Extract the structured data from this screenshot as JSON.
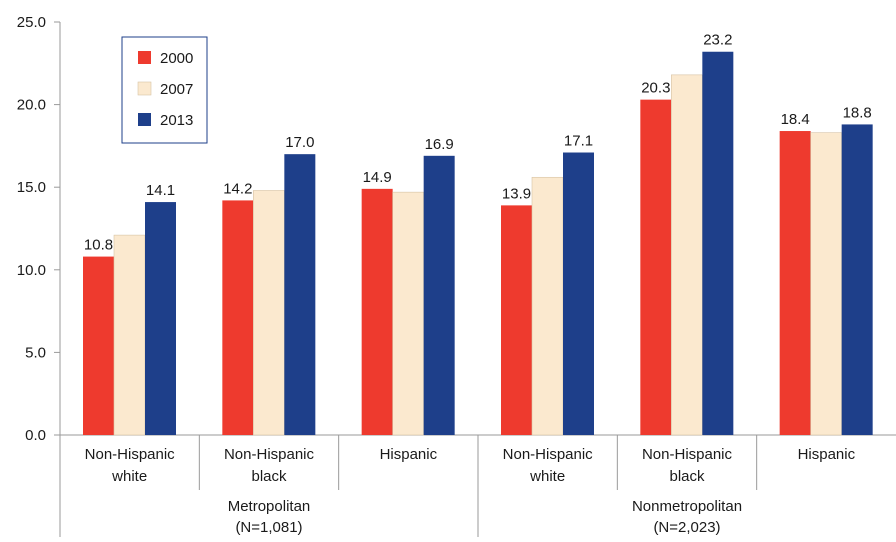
{
  "chart_data": {
    "type": "bar",
    "ylim": [
      0,
      25
    ],
    "yticks": [
      "0.0",
      "5.0",
      "10.0",
      "15.0",
      "20.0",
      "25.0"
    ],
    "grid": false,
    "legend_position": "top-left",
    "groups": [
      {
        "label_line1": "Metropolitan",
        "label_line2": "(N=1,081)"
      },
      {
        "label_line1": "Nonmetropolitan",
        "label_line2": "(N=2,023)"
      }
    ],
    "categories": [
      {
        "line1": "Non-Hispanic",
        "line2": "white",
        "group": 0
      },
      {
        "line1": "Non-Hispanic",
        "line2": "black",
        "group": 0
      },
      {
        "line1": "Hispanic",
        "line2": "",
        "group": 0
      },
      {
        "line1": "Non-Hispanic",
        "line2": "white",
        "group": 1
      },
      {
        "line1": "Non-Hispanic",
        "line2": "black",
        "group": 1
      },
      {
        "line1": "Hispanic",
        "line2": "",
        "group": 1
      }
    ],
    "series": [
      {
        "name": "2000",
        "color": "#ee3a2e",
        "values": [
          10.8,
          14.2,
          14.9,
          13.9,
          20.3,
          18.4
        ],
        "labels": [
          "10.8",
          "14.2",
          "14.9",
          "13.9",
          "20.3",
          "18.4"
        ]
      },
      {
        "name": "2007",
        "color": "#fbe9cf",
        "values": [
          12.1,
          14.8,
          14.7,
          15.6,
          21.8,
          18.3
        ],
        "labels": [
          "",
          "",
          "",
          "",
          "",
          ""
        ]
      },
      {
        "name": "2013",
        "color": "#1e3f8a",
        "values": [
          14.1,
          17.0,
          16.9,
          17.1,
          23.2,
          18.8
        ],
        "labels": [
          "14.1",
          "17.0",
          "16.9",
          "17.1",
          "23.2",
          "18.8"
        ]
      }
    ]
  }
}
